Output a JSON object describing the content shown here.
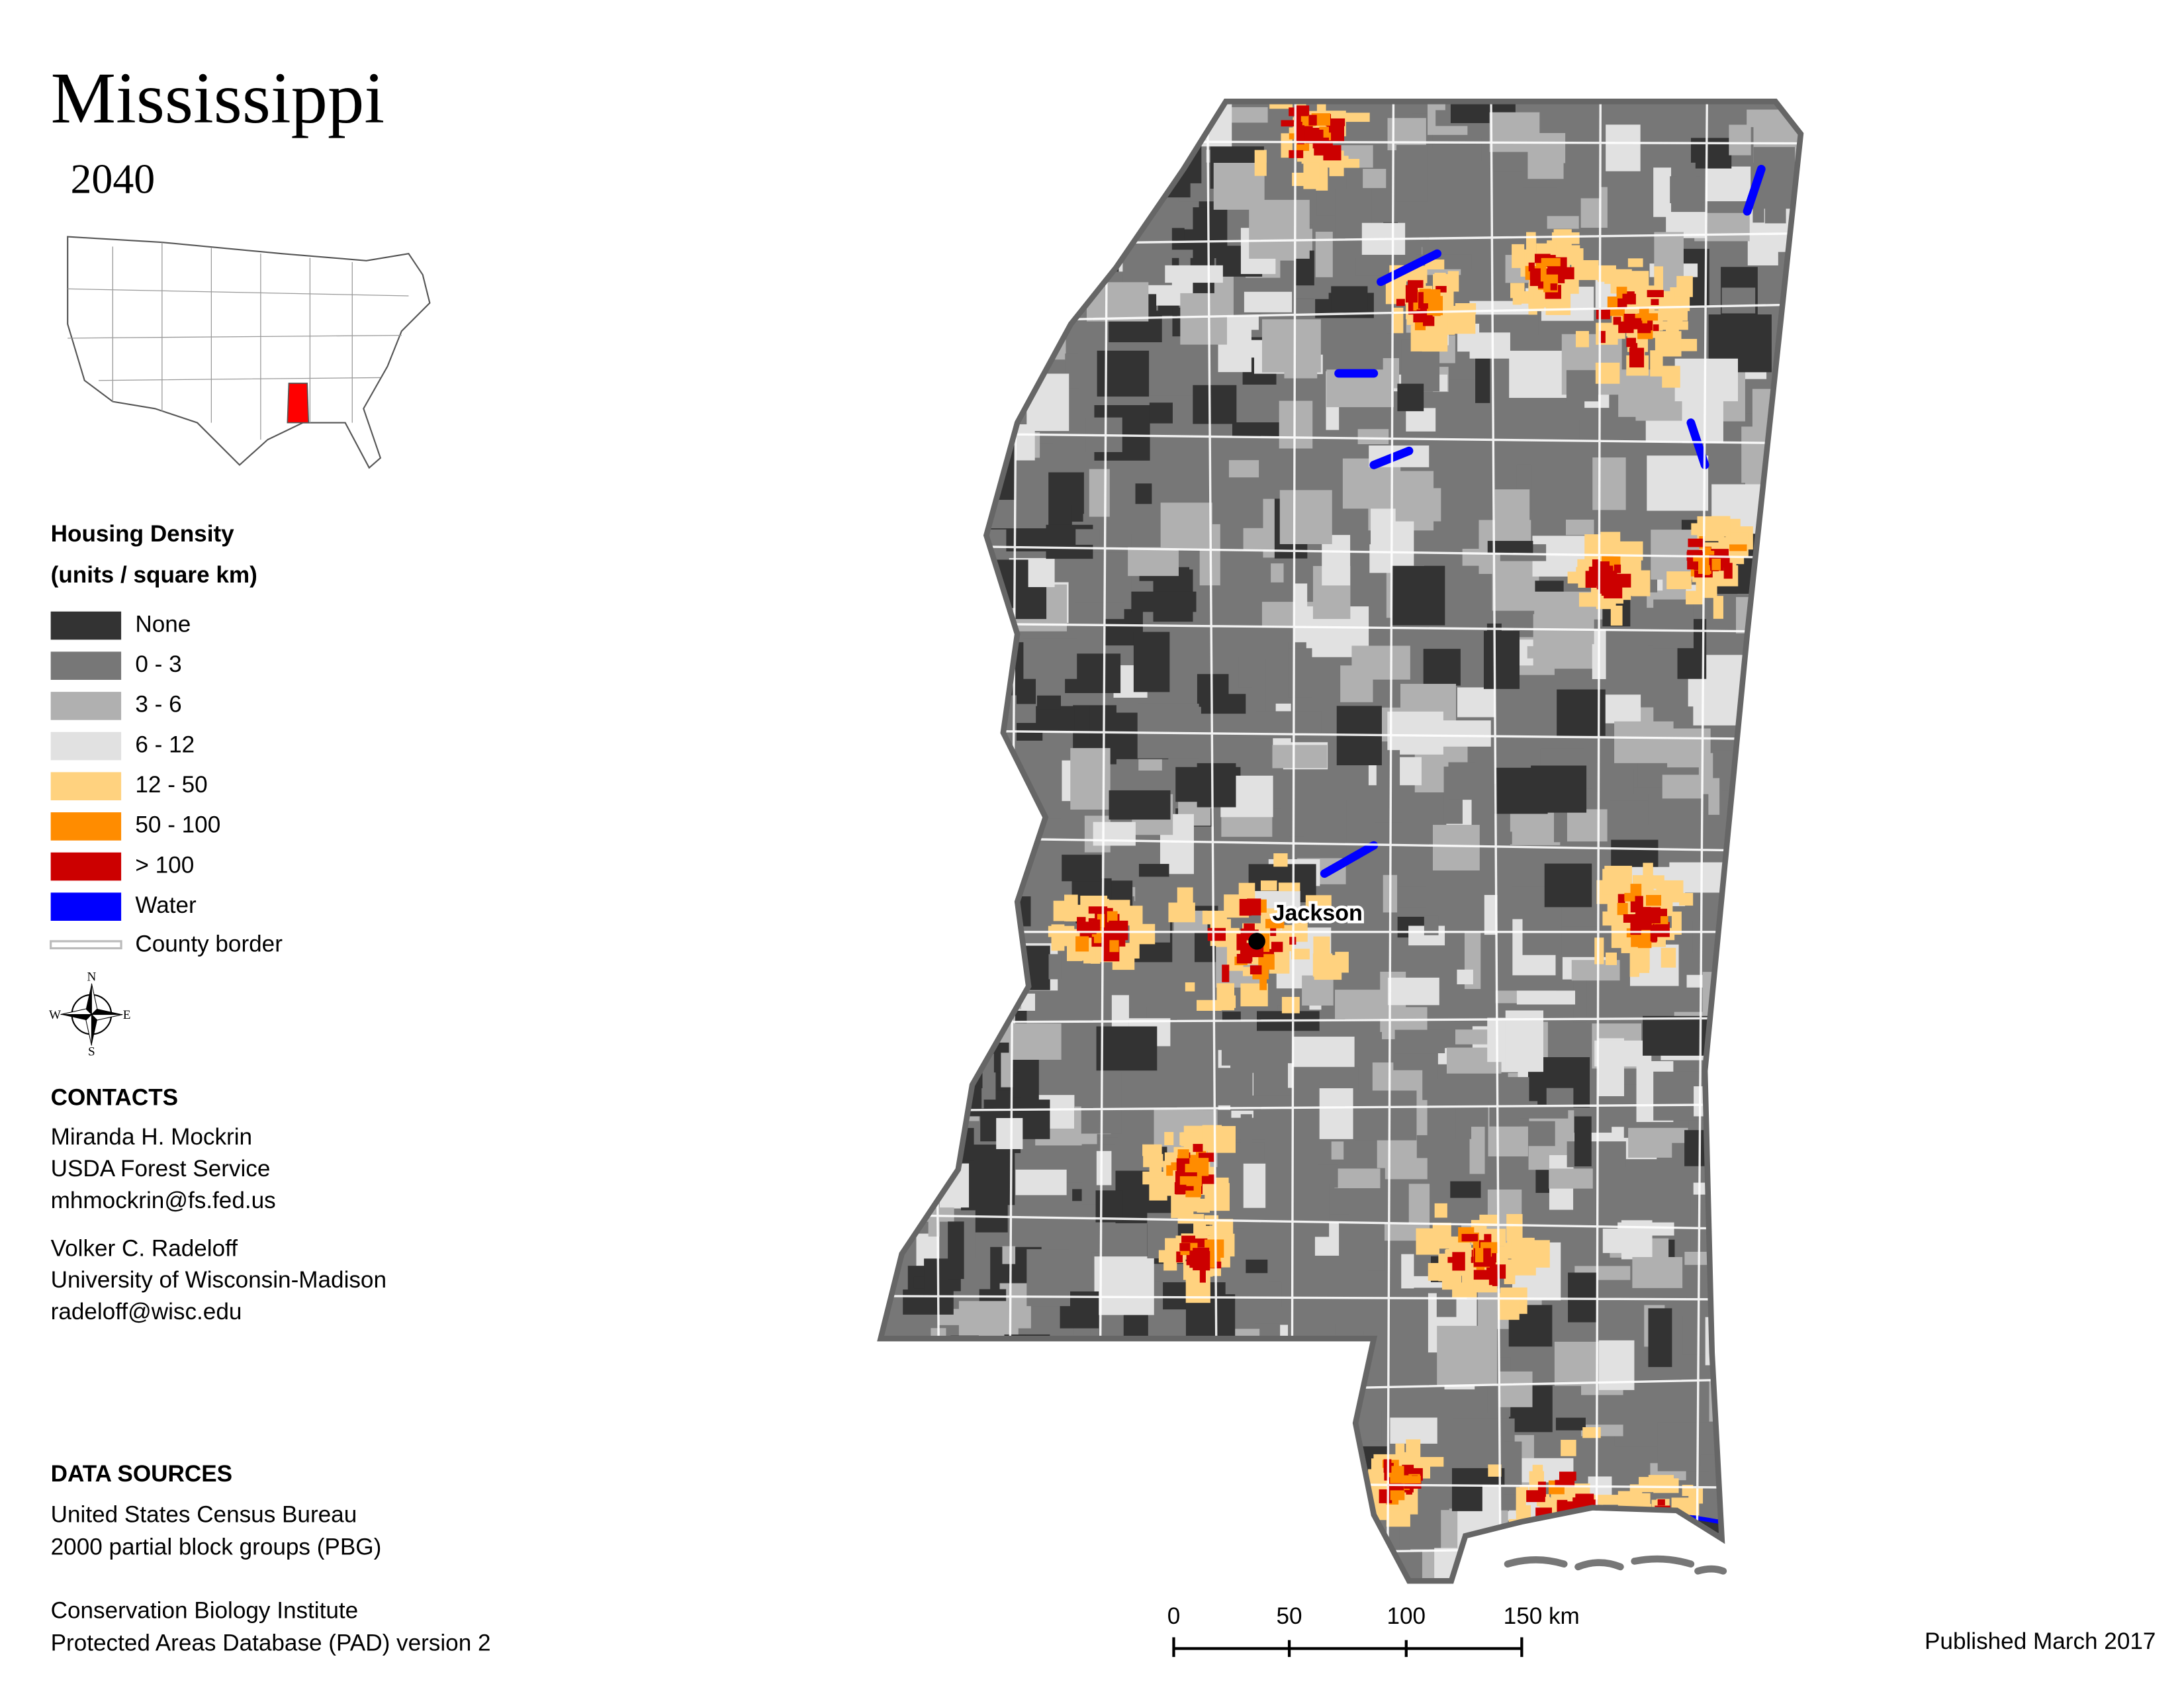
{
  "title": "Mississippi",
  "year": "2040",
  "legend": {
    "title": "Housing Density",
    "subtitle": "(units / square km)",
    "items": [
      {
        "label": "None",
        "color": "#333333"
      },
      {
        "label": "0 - 3",
        "color": "#777777"
      },
      {
        "label": "3 - 6",
        "color": "#b0b0b0"
      },
      {
        "label": "6 - 12",
        "color": "#e1e1e1"
      },
      {
        "label": "12 - 50",
        "color": "#ffd27f"
      },
      {
        "label": "50 - 100",
        "color": "#ff8c00"
      },
      {
        "label": "> 100",
        "color": "#cc0000"
      },
      {
        "label": "Water",
        "color": "#0000ff"
      }
    ],
    "border": {
      "label": "County border"
    }
  },
  "compass": {
    "n": "N",
    "s": "S",
    "e": "E",
    "w": "W"
  },
  "city": "Jackson",
  "contacts": {
    "heading": "CONTACTS",
    "people": [
      [
        "Miranda H. Mockrin",
        "USDA Forest Service",
        "mhmockrin@fs.fed.us"
      ],
      [
        "Volker C. Radeloff",
        "University of Wisconsin-Madison",
        "radeloff@wisc.edu"
      ]
    ]
  },
  "sources": {
    "heading": "DATA SOURCES",
    "items": [
      [
        "United States Census Bureau",
        "2000 partial block groups (PBG)"
      ],
      [
        "Conservation Biology Institute",
        "Protected Areas Database (PAD) version 2"
      ]
    ]
  },
  "scale": [
    "0",
    "50",
    "100",
    "150 km"
  ],
  "published": "Published March 2017"
}
